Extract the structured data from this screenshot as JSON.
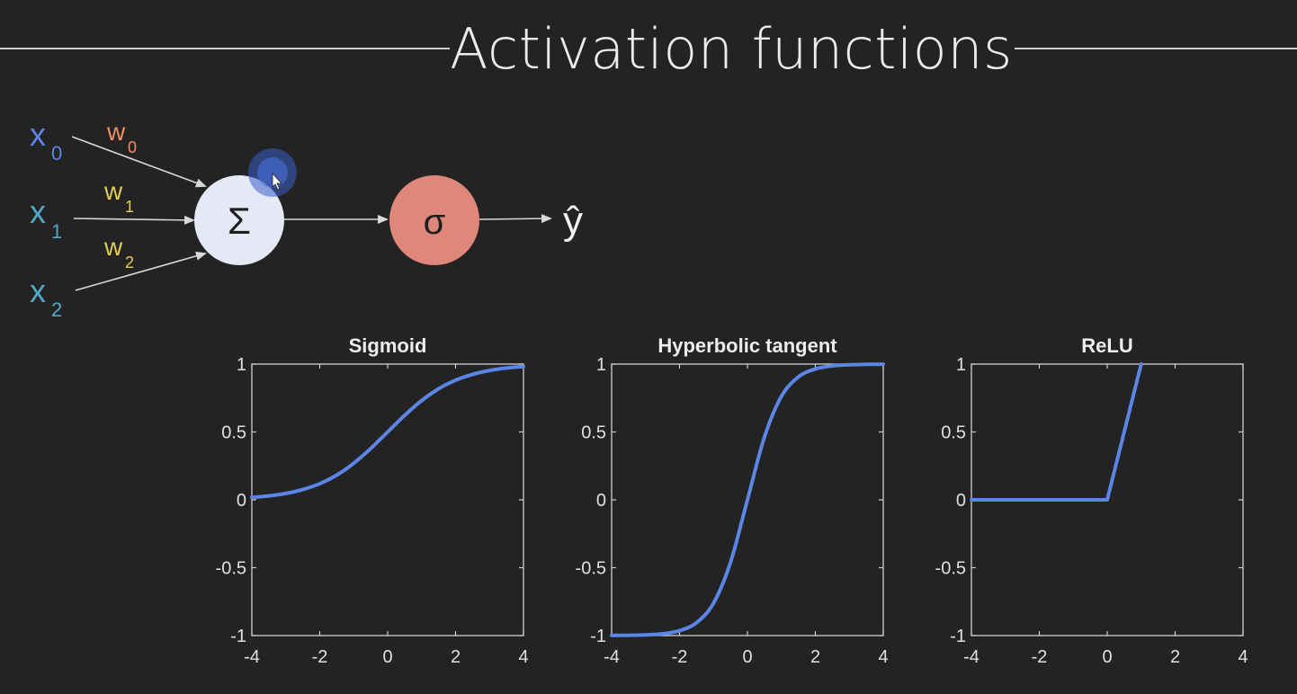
{
  "slide": {
    "title": "Activation functions"
  },
  "neuron": {
    "inputs": [
      {
        "label": "x",
        "subscript": "0",
        "color": "#5b86e5"
      },
      {
        "label": "x",
        "subscript": "1",
        "color": "#52a9c9"
      },
      {
        "label": "x",
        "subscript": "2",
        "color": "#52a9c9"
      }
    ],
    "weights": [
      {
        "label": "w",
        "subscript": "0",
        "color": "#ef8f63"
      },
      {
        "label": "w",
        "subscript": "1",
        "color": "#e3cf4f"
      },
      {
        "label": "w",
        "subscript": "2",
        "color": "#e3cf4f"
      }
    ],
    "sum_symbol": "Σ",
    "activation_symbol": "σ",
    "output_symbol": "ŷ",
    "colors": {
      "sum_node": "#e4e9f5",
      "activation_node": "#e0877b",
      "arrows": "#d8d8d8"
    }
  },
  "chart_data": [
    {
      "type": "line",
      "title": "Sigmoid",
      "xlim": [
        -4,
        4
      ],
      "ylim": [
        -1,
        1
      ],
      "xticks": [
        "-4",
        "-2",
        "0",
        "2",
        "4"
      ],
      "yticks": [
        "1",
        "0.5",
        "0",
        "-0.5",
        "-1"
      ],
      "grid": false,
      "color": "#5b86e5",
      "series": [
        {
          "x": [
            -4,
            -3.5,
            -3,
            -2.5,
            -2,
            -1.5,
            -1,
            -0.5,
            0,
            0.5,
            1,
            1.5,
            2,
            2.5,
            3,
            3.5,
            4
          ],
          "y": [
            0.018,
            0.029,
            0.047,
            0.076,
            0.119,
            0.182,
            0.269,
            0.378,
            0.5,
            0.622,
            0.731,
            0.818,
            0.881,
            0.924,
            0.953,
            0.971,
            0.982
          ]
        }
      ]
    },
    {
      "type": "line",
      "title": "Hyperbolic tangent",
      "xlim": [
        -4,
        4
      ],
      "ylim": [
        -1,
        1
      ],
      "xticks": [
        "-4",
        "-2",
        "0",
        "2",
        "4"
      ],
      "yticks": [
        "1",
        "0.5",
        "0",
        "-0.5",
        "-1"
      ],
      "grid": false,
      "color": "#5b86e5",
      "series": [
        {
          "x": [
            -4,
            -3.5,
            -3,
            -2.5,
            -2,
            -1.5,
            -1,
            -0.5,
            0,
            0.5,
            1,
            1.5,
            2,
            2.5,
            3,
            3.5,
            4
          ],
          "y": [
            -0.999,
            -0.998,
            -0.995,
            -0.987,
            -0.964,
            -0.905,
            -0.762,
            -0.462,
            0,
            0.462,
            0.762,
            0.905,
            0.964,
            0.987,
            0.995,
            0.998,
            0.999
          ]
        }
      ]
    },
    {
      "type": "line",
      "title": "ReLU",
      "xlim": [
        -4,
        4
      ],
      "ylim": [
        -1,
        1
      ],
      "xticks": [
        "-4",
        "-2",
        "0",
        "2",
        "4"
      ],
      "yticks": [
        "1",
        "0.5",
        "0",
        "-0.5",
        "-1"
      ],
      "grid": false,
      "color": "#5b86e5",
      "series": [
        {
          "x": [
            -4,
            -2,
            0,
            1
          ],
          "y": [
            0,
            0,
            0,
            1
          ]
        }
      ]
    }
  ]
}
